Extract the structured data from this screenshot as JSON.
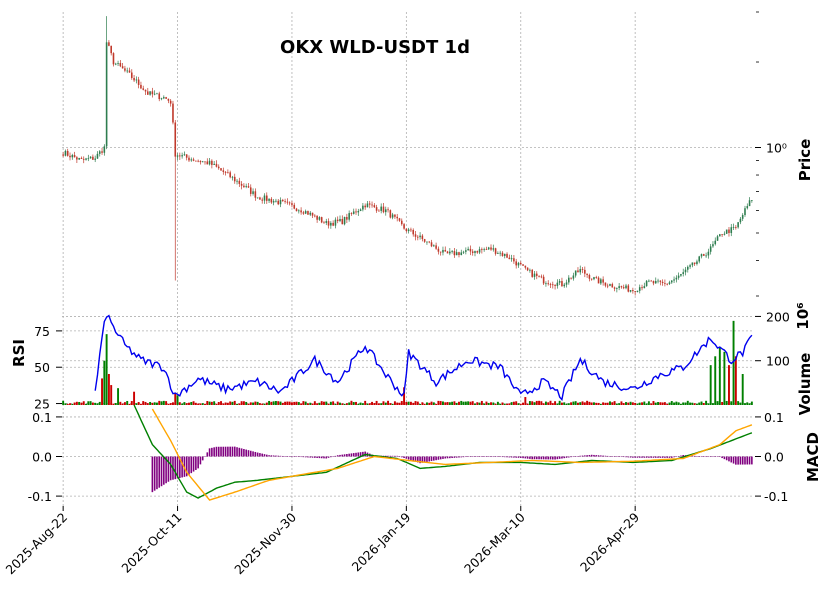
{
  "chart_data": {
    "type": "candlestick",
    "title": "OKX WLD-USDT 1d",
    "grid": true,
    "x_range": [
      "2025-08-22",
      "2026-06-19"
    ],
    "x_tick_labels": [
      "2025-Aug-22",
      "2025-Oct-11",
      "2025-Nov-30",
      "2026-Jan-19",
      "2026-Mar-10",
      "2026-Apr-29"
    ],
    "colors": {
      "up": "#2e7d4f",
      "down": "#c0392b",
      "rsi": "#0000ee",
      "macd": "#008000",
      "signal": "#ffa500",
      "hist": "#800080",
      "vol_up": "#008000",
      "vol_down": "#cc0000"
    },
    "price": {
      "ylabel": "Price",
      "scale": "log",
      "ylim": [
        0.3,
        3.0
      ],
      "ytick_label": "10⁰",
      "ytick_value": 1.0,
      "close_keypoints": [
        [
          "2025-08-22",
          0.96
        ],
        [
          "2025-08-30",
          0.9
        ],
        [
          "2025-09-05",
          0.92
        ],
        [
          "2025-09-09",
          1.0
        ],
        [
          "2025-09-10",
          2.35
        ],
        [
          "2025-09-13",
          2.0
        ],
        [
          "2025-09-20",
          1.8
        ],
        [
          "2025-09-28",
          1.55
        ],
        [
          "2025-10-05",
          1.5
        ],
        [
          "2025-10-08",
          1.45
        ],
        [
          "2025-10-10",
          0.95
        ],
        [
          "2025-10-15",
          0.92
        ],
        [
          "2025-10-25",
          0.88
        ],
        [
          "2025-11-05",
          0.77
        ],
        [
          "2025-11-15",
          0.67
        ],
        [
          "2025-11-25",
          0.64
        ],
        [
          "2025-12-05",
          0.6
        ],
        [
          "2025-12-15",
          0.54
        ],
        [
          "2025-12-22",
          0.55
        ],
        [
          "2026-01-01",
          0.63
        ],
        [
          "2026-01-10",
          0.6
        ],
        [
          "2026-01-18",
          0.52
        ],
        [
          "2026-01-25",
          0.48
        ],
        [
          "2026-02-05",
          0.42
        ],
        [
          "2026-02-15",
          0.43
        ],
        [
          "2026-02-25",
          0.44
        ],
        [
          "2026-03-05",
          0.41
        ],
        [
          "2026-03-12",
          0.37
        ],
        [
          "2026-03-20",
          0.34
        ],
        [
          "2026-03-28",
          0.33
        ],
        [
          "2026-04-05",
          0.37
        ],
        [
          "2026-04-12",
          0.34
        ],
        [
          "2026-04-20",
          0.325
        ],
        [
          "2026-04-28",
          0.315
        ],
        [
          "2026-05-05",
          0.335
        ],
        [
          "2026-05-12",
          0.33
        ],
        [
          "2026-05-18",
          0.35
        ],
        [
          "2026-05-25",
          0.39
        ],
        [
          "2026-06-01",
          0.44
        ],
        [
          "2026-06-06",
          0.5
        ],
        [
          "2026-06-12",
          0.52
        ],
        [
          "2026-06-19",
          0.66
        ]
      ],
      "spike_lows": [
        [
          "2025-10-10",
          0.34
        ]
      ],
      "spike_highs": [
        [
          "2025-09-10",
          2.9
        ]
      ]
    },
    "volume": {
      "ylabel": "Volume",
      "scale_label": "10⁶",
      "yticks": [
        100,
        200
      ],
      "ylim": [
        0,
        210
      ],
      "typical_millions": 6,
      "spikes": [
        [
          "2025-09-08",
          60
        ],
        [
          "2025-09-09",
          100
        ],
        [
          "2025-09-10",
          160
        ],
        [
          "2025-09-11",
          70
        ],
        [
          "2025-09-12",
          45
        ],
        [
          "2025-09-15",
          38
        ],
        [
          "2025-09-22",
          30
        ],
        [
          "2025-10-10",
          28
        ],
        [
          "2025-10-11",
          22
        ],
        [
          "2026-01-18",
          40
        ],
        [
          "2026-03-12",
          18
        ],
        [
          "2026-06-01",
          90
        ],
        [
          "2026-06-03",
          110
        ],
        [
          "2026-06-05",
          130
        ],
        [
          "2026-06-07",
          120
        ],
        [
          "2026-06-09",
          90
        ],
        [
          "2026-06-11",
          190
        ],
        [
          "2026-06-12",
          110
        ],
        [
          "2026-06-15",
          70
        ]
      ]
    },
    "rsi": {
      "ylabel": "RSI",
      "yticks": [
        25,
        50,
        75
      ],
      "ylim": [
        24,
        88
      ],
      "keypoints": [
        [
          "2025-09-05",
          33
        ],
        [
          "2025-09-08",
          70
        ],
        [
          "2025-09-10",
          87
        ],
        [
          "2025-09-12",
          80
        ],
        [
          "2025-09-18",
          65
        ],
        [
          "2025-09-25",
          55
        ],
        [
          "2025-10-05",
          50
        ],
        [
          "2025-10-10",
          30
        ],
        [
          "2025-10-20",
          42
        ],
        [
          "2025-11-01",
          35
        ],
        [
          "2025-11-15",
          40
        ],
        [
          "2025-11-25",
          33
        ],
        [
          "2025-12-10",
          55
        ],
        [
          "2025-12-20",
          40
        ],
        [
          "2026-01-01",
          65
        ],
        [
          "2026-01-10",
          45
        ],
        [
          "2026-01-18",
          30
        ],
        [
          "2026-01-20",
          60
        ],
        [
          "2026-02-01",
          40
        ],
        [
          "2026-02-15",
          55
        ],
        [
          "2026-03-01",
          50
        ],
        [
          "2026-03-10",
          30
        ],
        [
          "2026-03-20",
          40
        ],
        [
          "2026-03-28",
          30
        ],
        [
          "2026-04-05",
          55
        ],
        [
          "2026-04-15",
          40
        ],
        [
          "2026-04-28",
          35
        ],
        [
          "2026-05-10",
          45
        ],
        [
          "2026-05-20",
          50
        ],
        [
          "2026-06-01",
          70
        ],
        [
          "2026-06-10",
          55
        ],
        [
          "2026-06-15",
          60
        ],
        [
          "2026-06-19",
          70
        ]
      ]
    },
    "macd": {
      "ylabel": "MACD",
      "yticks_left": [
        -0.1,
        0.0,
        0.1
      ],
      "yticks_right": [
        -0.1,
        0.0,
        0.1
      ],
      "ylim": [
        -0.125,
        0.12
      ],
      "macd_keypoints": [
        [
          "2025-09-22",
          0.13
        ],
        [
          "2025-09-30",
          0.03
        ],
        [
          "2025-10-08",
          -0.02
        ],
        [
          "2025-10-15",
          -0.09
        ],
        [
          "2025-10-20",
          -0.105
        ],
        [
          "2025-10-28",
          -0.08
        ],
        [
          "2025-11-05",
          -0.065
        ],
        [
          "2025-11-15",
          -0.06
        ],
        [
          "2025-11-30",
          -0.05
        ],
        [
          "2025-12-15",
          -0.04
        ],
        [
          "2026-01-01",
          0.005
        ],
        [
          "2026-01-15",
          -0.005
        ],
        [
          "2026-01-25",
          -0.03
        ],
        [
          "2026-02-05",
          -0.025
        ],
        [
          "2026-02-20",
          -0.015
        ],
        [
          "2026-03-10",
          -0.015
        ],
        [
          "2026-03-25",
          -0.02
        ],
        [
          "2026-04-10",
          -0.01
        ],
        [
          "2026-04-28",
          -0.015
        ],
        [
          "2026-05-15",
          -0.01
        ],
        [
          "2026-06-01",
          0.02
        ],
        [
          "2026-06-10",
          0.04
        ],
        [
          "2026-06-19",
          0.06
        ]
      ],
      "signal_keypoints": [
        [
          "2025-09-30",
          0.12
        ],
        [
          "2025-10-08",
          0.04
        ],
        [
          "2025-10-15",
          -0.04
        ],
        [
          "2025-10-25",
          -0.11
        ],
        [
          "2025-11-05",
          -0.09
        ],
        [
          "2025-11-20",
          -0.06
        ],
        [
          "2025-12-05",
          -0.045
        ],
        [
          "2025-12-20",
          -0.03
        ],
        [
          "2026-01-05",
          0.0
        ],
        [
          "2026-01-20",
          -0.01
        ],
        [
          "2026-02-05",
          -0.02
        ],
        [
          "2026-02-25",
          -0.015
        ],
        [
          "2026-03-15",
          -0.01
        ],
        [
          "2026-04-05",
          -0.015
        ],
        [
          "2026-04-28",
          -0.012
        ],
        [
          "2026-05-20",
          -0.005
        ],
        [
          "2026-06-05",
          0.03
        ],
        [
          "2026-06-12",
          0.065
        ],
        [
          "2026-06-19",
          0.08
        ]
      ]
    }
  }
}
